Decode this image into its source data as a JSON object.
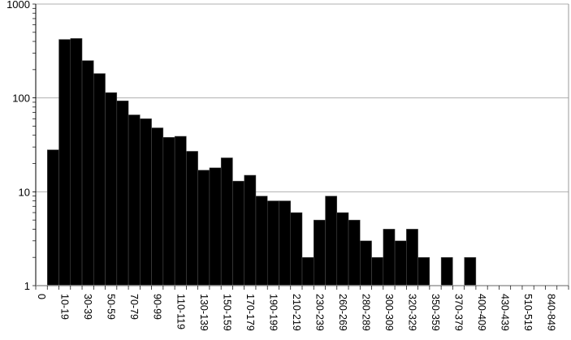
{
  "chart_data": {
    "type": "bar",
    "title": "",
    "xlabel": "",
    "ylabel": "",
    "y_scale": "log",
    "ylim": [
      1,
      1000
    ],
    "y_ticks": [
      "1",
      "10",
      "100",
      "1000"
    ],
    "grid": "horizontal at major ticks",
    "bar_color": "#000000",
    "grid_color": "#b0b0b0",
    "categories": [
      "0",
      "",
      "10-19",
      "",
      "30-39",
      "",
      "50-59",
      "",
      "70-79",
      "",
      "90-99",
      "",
      "110-119",
      "",
      "130-139",
      "",
      "150-159",
      "",
      "170-179",
      "",
      "190-199",
      "",
      "210-219",
      "",
      "230-239",
      "",
      "260-269",
      "",
      "280-289",
      "",
      "300-309",
      "",
      "320-329",
      "",
      "350-359",
      "",
      "370-379",
      "",
      "400-409",
      "",
      "430-439",
      "",
      "510-519",
      "",
      "840-849",
      ""
    ],
    "values": [
      0,
      28,
      420,
      430,
      250,
      182,
      114,
      93,
      66,
      60,
      48,
      38,
      39,
      27,
      17,
      18,
      23,
      13,
      15,
      9,
      8,
      8,
      6,
      2,
      5,
      9,
      6,
      5,
      3,
      2,
      4,
      3,
      4,
      2,
      0,
      2,
      0,
      2,
      0,
      0,
      0,
      0,
      0,
      0,
      0,
      0
    ]
  }
}
